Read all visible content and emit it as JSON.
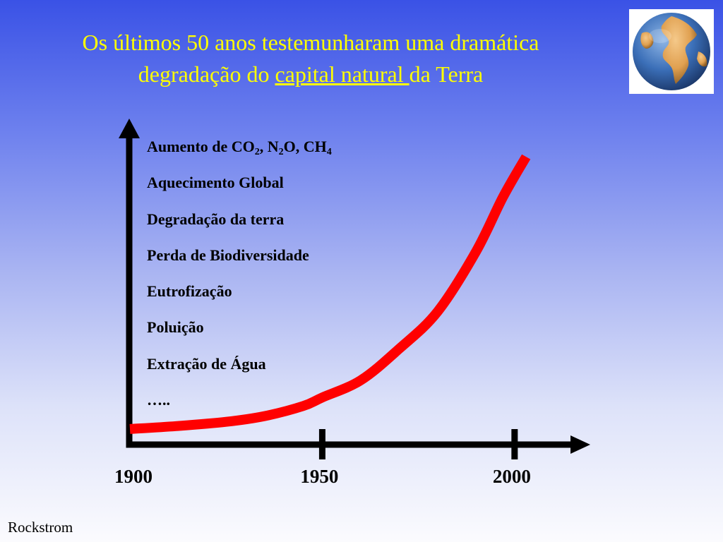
{
  "title": {
    "line1": "Os últimos 50 anos testemunharam uma dramática",
    "line2_pre": "degradação do ",
    "line2_underlined": "capital natural ",
    "line2_post": "da Terra"
  },
  "globe": {
    "ocean_color": "#3b6fb8",
    "land_color": "#e0a050",
    "icon": "globe-icon"
  },
  "impacts": {
    "co2": {
      "pre": "Aumento de CO",
      "sub1": "2",
      "mid1": ", N",
      "sub2": "2",
      "mid2": "O, CH",
      "sub3": "4"
    },
    "items": [
      "Aquecimento Global",
      "Degradação da terra",
      "Perda de Biodiversidade",
      "Eutrofização",
      "Poluição",
      "Extração de Água",
      "….."
    ]
  },
  "chart_data": {
    "type": "line",
    "title": "",
    "xlabel": "",
    "ylabel": "",
    "x_ticks": [
      "1900",
      "1950",
      "2000"
    ],
    "x_tick_values": [
      1900,
      1950,
      2000
    ],
    "xlim": [
      1900,
      2016
    ],
    "ylim": [
      0,
      100
    ],
    "y_scale": "none (qualitative, exponential growth)",
    "grid": false,
    "series": [
      {
        "color": "#ff0000",
        "x": [
          1900,
          1912,
          1925,
          1935,
          1945,
          1950,
          1960,
          1970,
          1980,
          1990,
          1997,
          2003
        ],
        "y": [
          2,
          3,
          4.5,
          6.5,
          10,
          13,
          19,
          30,
          43,
          64,
          83,
          97
        ]
      }
    ]
  },
  "source": "Rockstrom"
}
